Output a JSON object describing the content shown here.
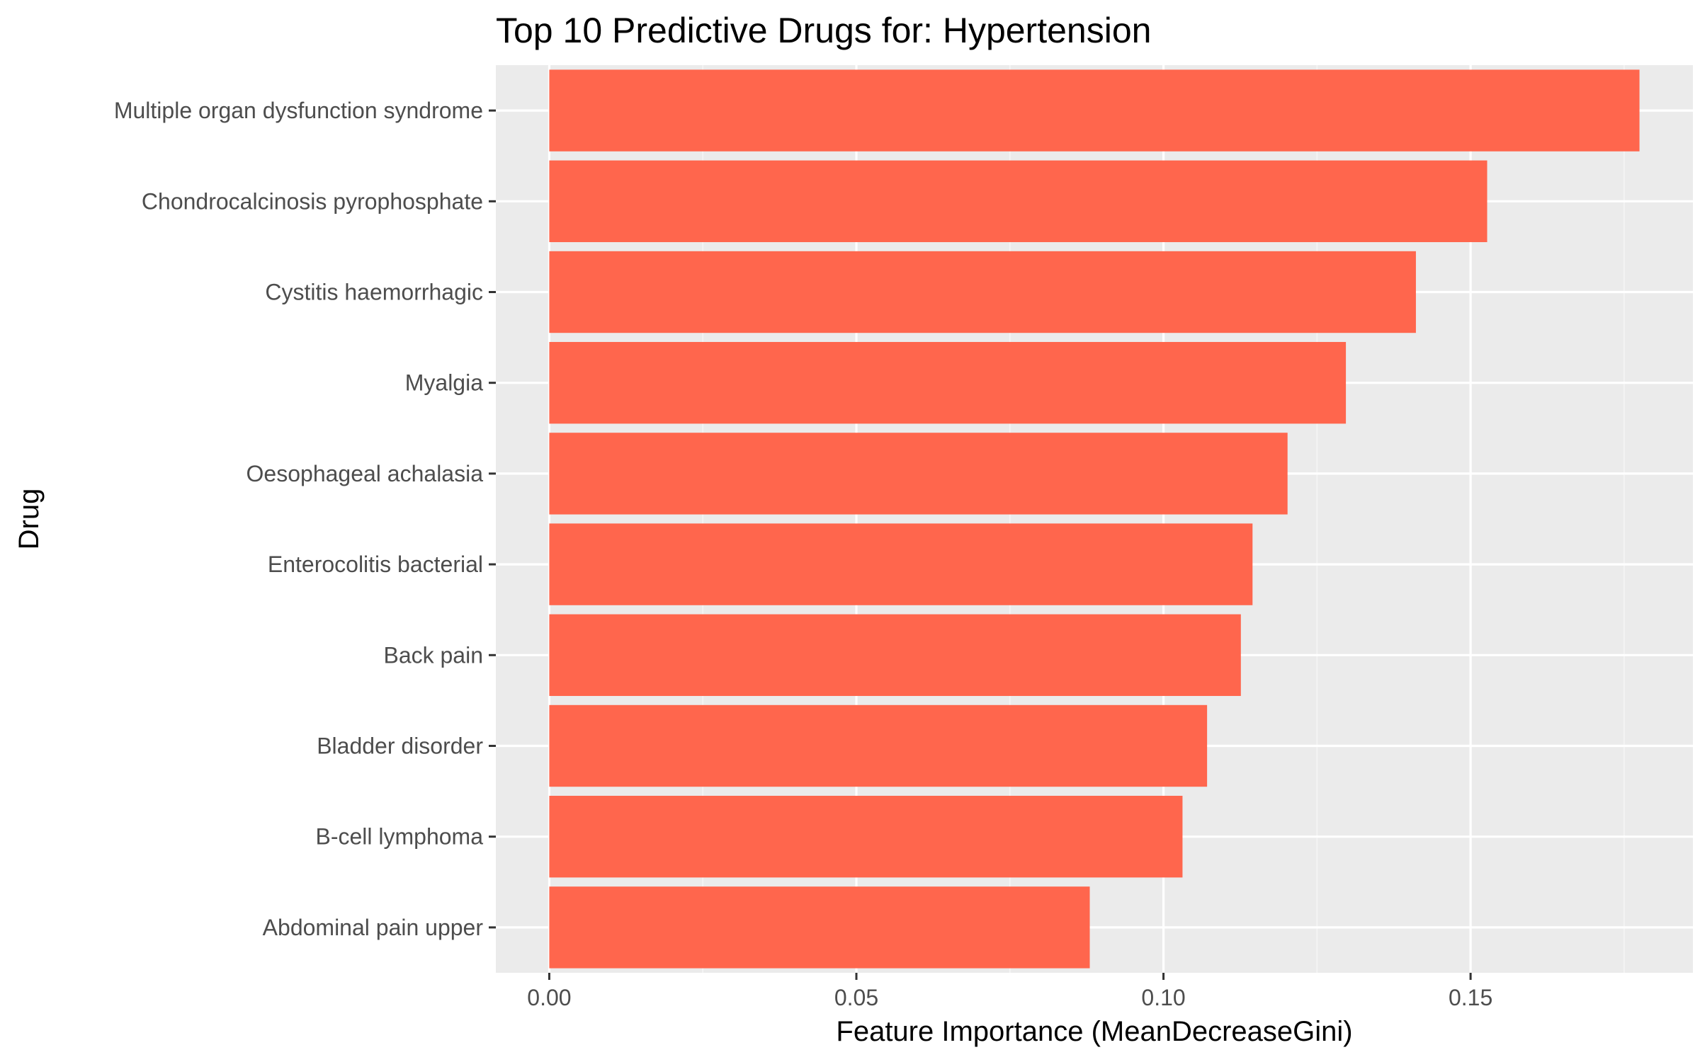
{
  "chart_data": {
    "type": "bar",
    "orientation": "horizontal",
    "title": "Top 10 Predictive Drugs for: Hypertension",
    "xlabel": "Feature Importance (MeanDecreaseGini)",
    "ylabel": "Drug",
    "categories": [
      "Multiple organ dysfunction syndrome",
      "Chondrocalcinosis pyrophosphate",
      "Cystitis haemorrhagic",
      "Myalgia",
      "Oesophageal achalasia",
      "Enterocolitis bacterial",
      "Back pain",
      "Bladder disorder",
      "B-cell lymphoma",
      "Abdominal pain upper"
    ],
    "values": [
      0.1775,
      0.1527,
      0.1411,
      0.1297,
      0.1202,
      0.1145,
      0.1126,
      0.1071,
      0.1031,
      0.088
    ],
    "xlim": [
      -0.0087,
      0.1862
    ],
    "xticks": [
      0.0,
      0.05,
      0.1,
      0.15
    ],
    "xtick_labels": [
      "0.00",
      "0.05",
      "0.10",
      "0.15"
    ],
    "grid": true,
    "legend": "none",
    "colors": {
      "bar": "#FF664D",
      "panel": "#EBEBEB",
      "grid_major": "#FFFFFF",
      "grid_minor": "#F5F5F5",
      "tick_text": "#4D4D4D",
      "tick_mark": "#333333"
    }
  }
}
